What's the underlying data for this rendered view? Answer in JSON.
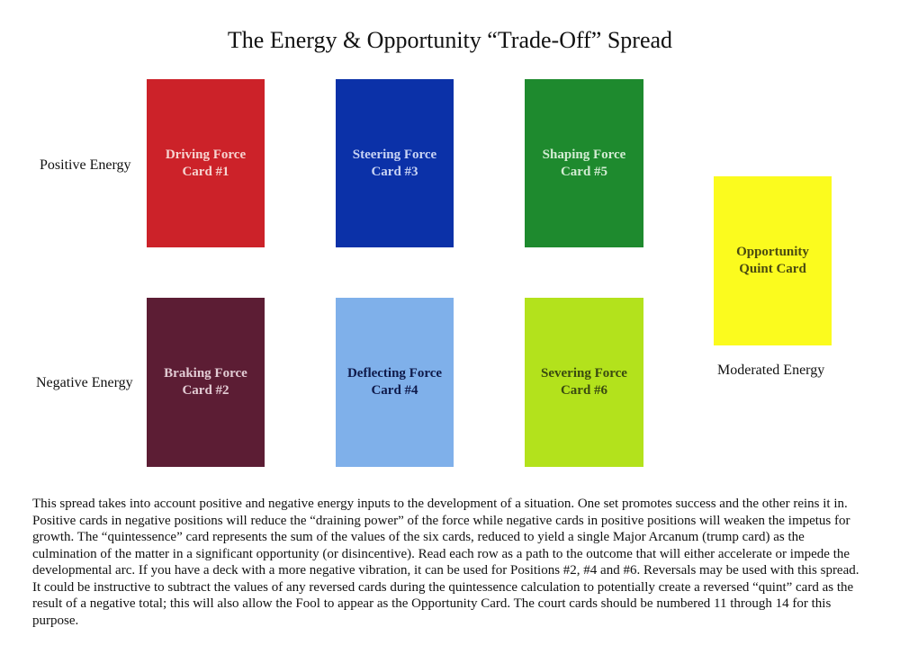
{
  "title": "The Energy & Opportunity “Trade-Off” Spread",
  "row_labels": {
    "positive": "Positive Energy",
    "negative": "Negative Energy",
    "moderated": "Moderated Energy"
  },
  "cards": {
    "driving": {
      "name": "Driving Force",
      "number": "Card #1",
      "color": "#cc2229",
      "text_color": "#f6d4d0"
    },
    "steering": {
      "name": "Steering Force",
      "number": "Card #3",
      "color": "#0b31a8",
      "text_color": "#c9d4f4"
    },
    "shaping": {
      "name": "Shaping Force",
      "number": "Card #5",
      "color": "#1e8a2e",
      "text_color": "#d3ecd3"
    },
    "braking": {
      "name": "Braking Force",
      "number": "Card #2",
      "color": "#5c1d34",
      "text_color": "#e2ccd4"
    },
    "deflecting": {
      "name": "Deflecting Force",
      "number": "Card #4",
      "color": "#7fb0ea",
      "text_color": "#0f1a4a"
    },
    "severing": {
      "name": "Severing Force",
      "number": "Card #6",
      "color": "#b3e21c",
      "text_color": "#3a4a10"
    },
    "quint": {
      "name": "Opportunity",
      "number": "Quint Card",
      "color": "#fbfb1e",
      "text_color": "#4a4a10"
    }
  },
  "description": "This spread takes into account positive and negative energy inputs to the development of a situation. One set promotes success and the other reins it in. Positive cards in negative positions will reduce the “draining power” of the force while negative cards in positive positions will weaken the impetus for growth. The “quintessence” card represents the sum of the values of the six cards, reduced to yield a single Major Arcanum (trump card) as the culmination of the matter in a significant opportunity (or disincentive). Read each row as a path to the outcome that will either accelerate or impede the developmental arc. If you have a deck with a more negative vibration, it can be used for Positions #2, #4 and #6. Reversals may be used with this spread. It could be instructive to subtract the values of any reversed cards during the quintessence calculation to potentially create a reversed “quint” card as the result of a negative total; this will also allow the Fool to appear as the Opportunity Card. The court cards should be numbered 11 through 14 for this purpose."
}
